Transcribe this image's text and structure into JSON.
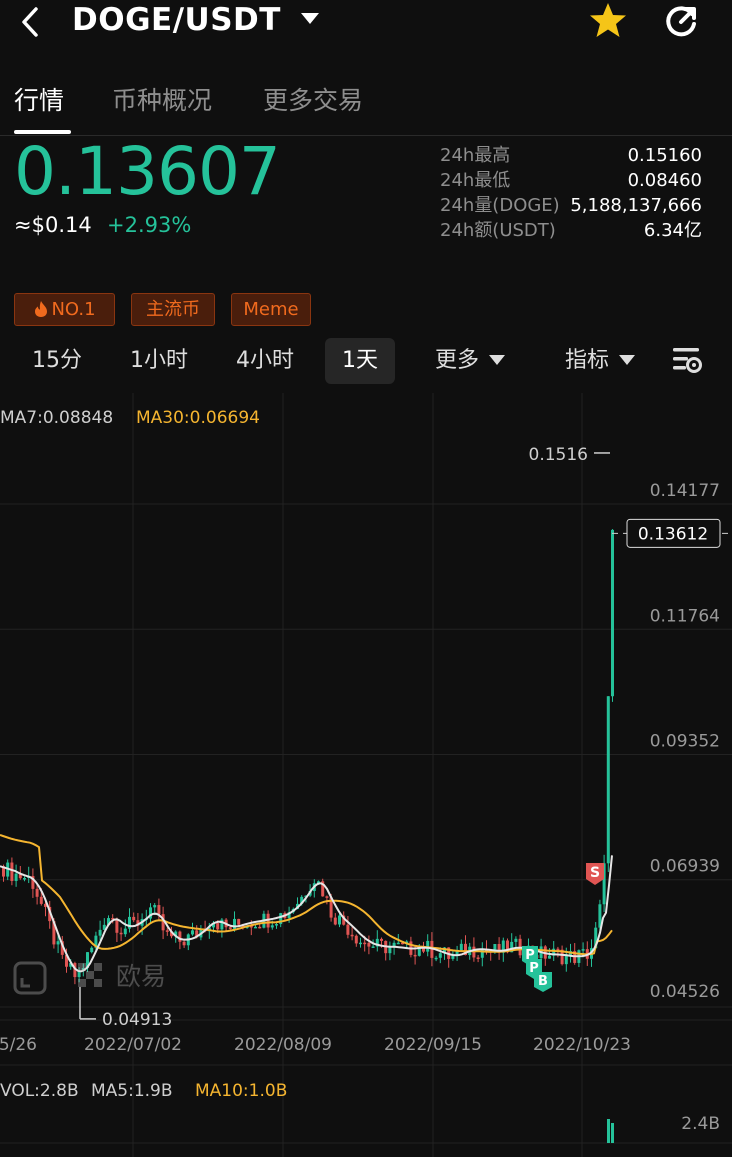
{
  "header": {
    "pair": "DOGE/USDT",
    "back_icon": "chevron-left-icon",
    "star_icon": "star-icon",
    "share_icon": "share-icon"
  },
  "tabs": [
    {
      "label": "行情",
      "active": true
    },
    {
      "label": "币种概况",
      "active": false
    },
    {
      "label": "更多交易",
      "active": false
    }
  ],
  "ticker": {
    "last_price": "0.13607",
    "usd_value": "≈$0.14",
    "change_pct": "+2.93%",
    "stats": [
      {
        "label": "24h最高",
        "value": "0.15160"
      },
      {
        "label": "24h最低",
        "value": "0.08460"
      },
      {
        "label": "24h量(DOGE)",
        "value": "5,188,137,666"
      },
      {
        "label": "24h额(USDT)",
        "value": "6.34亿"
      }
    ]
  },
  "badges": [
    {
      "label": "NO.1",
      "icon": "flame-icon"
    },
    {
      "label": "主流币"
    },
    {
      "label": "Meme"
    }
  ],
  "intervals": {
    "items": [
      {
        "label": "15分",
        "active": false
      },
      {
        "label": "1小时",
        "active": false
      },
      {
        "label": "4小时",
        "active": false
      },
      {
        "label": "1天",
        "active": true
      }
    ],
    "more_label": "更多",
    "indicator_label": "指标",
    "settings_icon": "chart-settings-icon"
  },
  "colors": {
    "up": "#25c29a",
    "down": "#e05553",
    "ma7": "#e6e6e6",
    "ma30": "#f5b530",
    "accent_orange": "#f06a1e"
  },
  "chart_data": {
    "type": "candlestick",
    "indicators": {
      "ma7": "MA7:0.08848",
      "ma30": "MA30:0.06694"
    },
    "y_ticks": [
      "0.14177",
      "0.11764",
      "0.09352",
      "0.06939",
      "0.04526"
    ],
    "y_tick_values": [
      0.14177,
      0.11764,
      0.09352,
      0.06939,
      0.04526
    ],
    "ylim": [
      0.04526,
      0.14177
    ],
    "x_ticks": [
      "5/26",
      "2022/07/02",
      "2022/08/09",
      "2022/09/15",
      "2022/10/23"
    ],
    "current_price_label": "0.13612",
    "current_price": 0.13612,
    "high_label": "0.1516",
    "high": 0.1516,
    "low_label": "0.04913",
    "low": 0.04913,
    "signals": [
      "S",
      "P",
      "P",
      "B"
    ],
    "watermark": "欧易",
    "volume": {
      "vol": "VOL:2.8B",
      "ma5": "MA5:1.9B",
      "ma10": "MA10:1.0B",
      "y_tick": "2.4B"
    }
  }
}
